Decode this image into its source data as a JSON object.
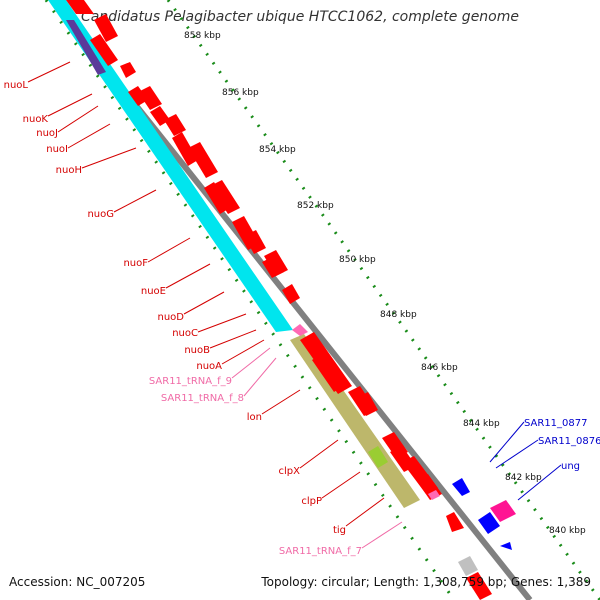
{
  "title": "Candidatus Pelagibacter ubique HTCC1062, complete genome",
  "footer": {
    "accession": "Accession: NC_007205",
    "summary": "Topology: circular; Length: 1,308,759 bp; Genes: 1,389"
  },
  "ticks": [
    "858 kbp",
    "856 kbp",
    "854 kbp",
    "852 kbp",
    "850 kbp",
    "848 kbp",
    "846 kbp",
    "844 kbp",
    "842 kbp",
    "840 kbp"
  ],
  "left_labels": [
    {
      "text": "nuoL",
      "color": "#d40000"
    },
    {
      "text": "nuoK",
      "color": "#d40000"
    },
    {
      "text": "nuoJ",
      "color": "#d40000"
    },
    {
      "text": "nuoI",
      "color": "#d40000"
    },
    {
      "text": "nuoH",
      "color": "#d40000"
    },
    {
      "text": "nuoG",
      "color": "#d40000"
    },
    {
      "text": "nuoF",
      "color": "#d40000"
    },
    {
      "text": "nuoE",
      "color": "#d40000"
    },
    {
      "text": "nuoD",
      "color": "#d40000"
    },
    {
      "text": "nuoC",
      "color": "#d40000"
    },
    {
      "text": "nuoB",
      "color": "#d40000"
    },
    {
      "text": "nuoA",
      "color": "#d40000"
    },
    {
      "text": "SAR11_tRNA_f_9",
      "color": "#f06aa6"
    },
    {
      "text": "SAR11_tRNA_f_8",
      "color": "#f06aa6"
    },
    {
      "text": "lon",
      "color": "#d40000"
    },
    {
      "text": "clpX",
      "color": "#d40000"
    },
    {
      "text": "clpP",
      "color": "#d40000"
    },
    {
      "text": "tig",
      "color": "#d40000"
    },
    {
      "text": "SAR11_tRNA_f_7",
      "color": "#f06aa6"
    }
  ],
  "right_labels": [
    {
      "text": "SAR11_0877",
      "color": "#0000cc"
    },
    {
      "text": "SAR11_0876",
      "color": "#0000cc"
    },
    {
      "text": "ung",
      "color": "#0000cc"
    }
  ],
  "colors": {
    "cds_red": "#ff0000",
    "trna_pink": "#ff69b4",
    "cyan_track": "#00e5ee",
    "purple_track": "#5b3a9a",
    "olive_track": "#bdb76b",
    "lime_track": "#9acd32",
    "backbone": "#808080",
    "tick_green": "#1a8c1a",
    "blue_gene": "#0000ff",
    "magenta_gene": "#ff1493"
  }
}
